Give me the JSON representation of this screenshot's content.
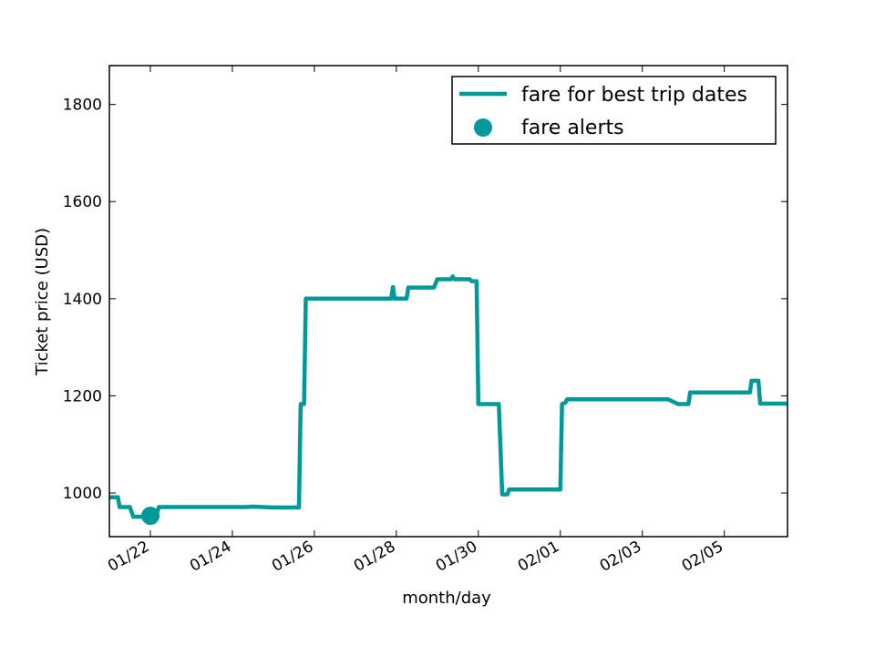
{
  "chart_data": {
    "type": "line",
    "title": "",
    "xlabel": "month/day",
    "ylabel": "Ticket price (USD)",
    "x_tick_labels": [
      "01/22",
      "01/24",
      "01/26",
      "01/28",
      "01/30",
      "02/01",
      "02/03",
      "02/05"
    ],
    "x_range": [
      "01/21",
      "02/06 13:00"
    ],
    "ylim": [
      910,
      1880
    ],
    "y_ticks": [
      1000,
      1200,
      1400,
      1600,
      1800
    ],
    "legend": {
      "position": "top-right",
      "entries": [
        "fare for best trip dates",
        "fare alerts"
      ]
    },
    "grid": false,
    "line_color": "#009999",
    "series": [
      {
        "name": "fare for best trip dates",
        "type": "line",
        "points": [
          [
            "01/21 00:00",
            991
          ],
          [
            "01/21 05:00",
            991
          ],
          [
            "01/21 06:00",
            971
          ],
          [
            "01/21 12:00",
            971
          ],
          [
            "01/21 14:00",
            951
          ],
          [
            "01/21 20:00",
            951
          ],
          [
            "01/22 00:00",
            960
          ],
          [
            "01/22 04:00",
            960
          ],
          [
            "01/22 05:00",
            971
          ],
          [
            "01/24 08:00",
            971
          ],
          [
            "01/24 12:00",
            972
          ],
          [
            "01/25 00:00",
            970
          ],
          [
            "01/25 15:00",
            970
          ],
          [
            "01/25 16:00",
            1183
          ],
          [
            "01/25 18:00",
            1183
          ],
          [
            "01/25 19:00",
            1400
          ],
          [
            "01/27 21:00",
            1400
          ],
          [
            "01/27 22:00",
            1424
          ],
          [
            "01/27 23:00",
            1400
          ],
          [
            "01/28 06:00",
            1400
          ],
          [
            "01/28 07:00",
            1423
          ],
          [
            "01/28 22:00",
            1423
          ],
          [
            "01/29 00:00",
            1440
          ],
          [
            "01/29 08:00",
            1440
          ],
          [
            "01/29 09:00",
            1446
          ],
          [
            "01/29 10:00",
            1440
          ],
          [
            "01/29 19:00",
            1440
          ],
          [
            "01/29 20:00",
            1436
          ],
          [
            "01/29 23:00",
            1436
          ],
          [
            "01/30 00:00",
            1183
          ],
          [
            "01/30 12:00",
            1183
          ],
          [
            "01/30 14:00",
            997
          ],
          [
            "01/30 17:00",
            997
          ],
          [
            "01/30 18:00",
            1007
          ],
          [
            "02/01 00:00",
            1007
          ],
          [
            "02/01 01:00",
            1183
          ],
          [
            "02/01 03:00",
            1186
          ],
          [
            "02/01 04:00",
            1193
          ],
          [
            "02/03 15:00",
            1193
          ],
          [
            "02/03 21:00",
            1183
          ],
          [
            "02/04 03:00",
            1183
          ],
          [
            "02/04 04:00",
            1207
          ],
          [
            "02/05 15:00",
            1207
          ],
          [
            "02/05 16:00",
            1231
          ],
          [
            "02/05 20:00",
            1231
          ],
          [
            "02/05 21:00",
            1184
          ],
          [
            "02/06 13:00",
            1184
          ]
        ]
      },
      {
        "name": "fare alerts",
        "type": "scatter",
        "points": [
          [
            "01/22 00:00",
            953
          ]
        ]
      }
    ]
  }
}
